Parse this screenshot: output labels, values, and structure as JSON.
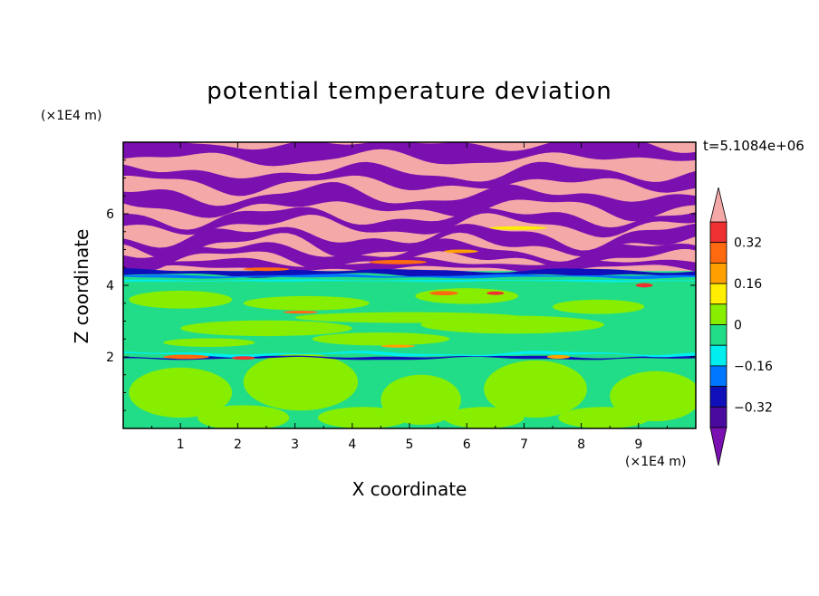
{
  "chart_data": {
    "type": "heatmap",
    "title": "potential temperature deviation",
    "xlabel": "X coordinate",
    "ylabel": "Z coordinate",
    "x_unit": "(×1E4 m)",
    "z_unit": "(×1E4 m)",
    "time_label": "t=5.1084e+06",
    "xlim": [
      0,
      10
    ],
    "ylim": [
      0,
      8
    ],
    "x_ticks": [
      "1",
      "2",
      "3",
      "4",
      "5",
      "6",
      "7",
      "8",
      "9"
    ],
    "z_ticks": [
      "2",
      "4",
      "6"
    ],
    "colorbar": {
      "levels": [
        -0.4,
        -0.32,
        -0.24,
        -0.16,
        -0.08,
        0,
        0.08,
        0.16,
        0.24,
        0.32,
        0.4
      ],
      "labels": [
        "0.32",
        "0.16",
        "0",
        "−0.16",
        "−0.32"
      ],
      "colors": {
        "over": "#f5a8a8",
        "0.32_0.4": "#ee3030",
        "0.24_0.32": "#ff6a10",
        "0.16_0.24": "#ffa000",
        "0.08_0.16": "#ffee00",
        "0_0.08": "#88ee00",
        "-0.08_0": "#22dd88",
        "-0.16_-0.08": "#00eeee",
        "-0.24_-0.16": "#0077ff",
        "-0.32_-0.24": "#1010bb",
        "-0.4_-0.32": "#4a0aa0",
        "under": "#7a10b0"
      }
    }
  }
}
